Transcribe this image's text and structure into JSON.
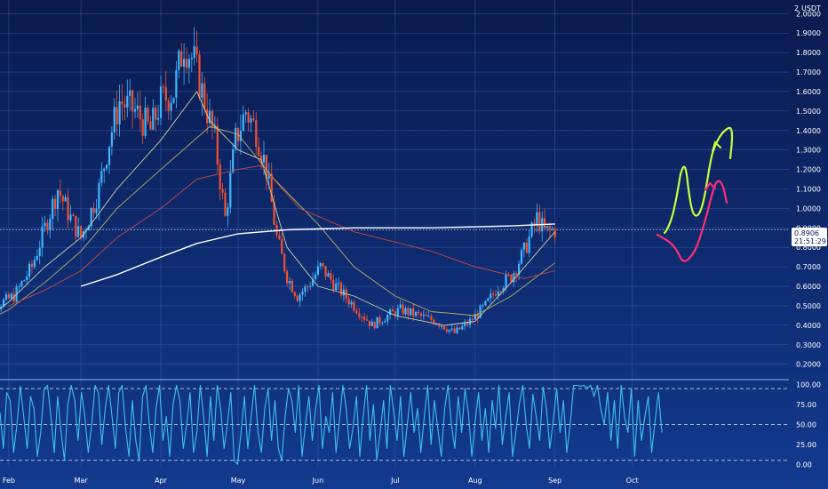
{
  "symbol_quote": "USDT",
  "currency_prefix": "2",
  "price_label": "0.8906",
  "countdown_label": "21:51:29",
  "colors": {
    "bg_top": "#0a1a4e",
    "bg_bottom": "#123a8e",
    "grid": "#3a5aa8",
    "up": "#3fb6ff",
    "down": "#f25030",
    "ma_fast": "#c9d4a0",
    "ma_mid": "#b8b060",
    "ma_slow": "#c24a40",
    "ma_200": "#ffffff",
    "stoch": "#3fc0f0",
    "annot_green": "#c8ff3c",
    "annot_pink": "#ff2d7a",
    "axis_text": "#ffffff"
  },
  "chart_data": [
    {
      "type": "candlestick",
      "title": "",
      "ylabel": "",
      "y_ticks": [
        "2.0000",
        "1.9000",
        "1.8000",
        "1.7000",
        "1.6000",
        "1.5000",
        "1.4000",
        "1.3000",
        "1.2000",
        "1.1000",
        "1.0000",
        "0.9000",
        "0.8000",
        "0.7000",
        "0.6000",
        "0.5000",
        "0.4000",
        "0.3000",
        "0.2000"
      ],
      "ylim": [
        0.13,
        2.07
      ],
      "x_ticks": [
        "Feb",
        "Mar",
        "Apr",
        "May",
        "Jun",
        "Jul",
        "Aug",
        "Sep",
        "Oct"
      ],
      "last_price": 0.8906,
      "close_path": [
        [
          "Jan 20",
          0.42
        ],
        [
          "Jan 27",
          0.5
        ],
        [
          "Feb 3",
          0.55
        ],
        [
          "Feb 10",
          0.7
        ],
        [
          "Feb 15",
          0.9
        ],
        [
          "Feb 20",
          1.1
        ],
        [
          "Feb 25",
          0.95
        ],
        [
          "Mar 1",
          0.85
        ],
        [
          "Mar 4",
          0.95
        ],
        [
          "Mar 8",
          1.1
        ],
        [
          "Mar 12",
          1.35
        ],
        [
          "Mar 16",
          1.55
        ],
        [
          "Mar 22",
          1.5
        ],
        [
          "Mar 28",
          1.4
        ],
        [
          "Apr 1",
          1.55
        ],
        [
          "Apr 6",
          1.6
        ],
        [
          "Apr 10",
          1.85
        ],
        [
          "Apr 14",
          1.75
        ],
        [
          "Apr 18",
          1.55
        ],
        [
          "Apr 22",
          1.35
        ],
        [
          "Apr 26",
          0.95
        ],
        [
          "Apr 30",
          1.35
        ],
        [
          "May 4",
          1.5
        ],
        [
          "May 8",
          1.4
        ],
        [
          "May 12",
          1.2
        ],
        [
          "May 16",
          0.85
        ],
        [
          "May 20",
          0.65
        ],
        [
          "May 24",
          0.55
        ],
        [
          "May 28",
          0.6
        ],
        [
          "Jun 2",
          0.7
        ],
        [
          "Jun 8",
          0.6
        ],
        [
          "Jun 15",
          0.5
        ],
        [
          "Jun 22",
          0.4
        ],
        [
          "Jun 28",
          0.45
        ],
        [
          "Jul 3",
          0.48
        ],
        [
          "Jul 10",
          0.45
        ],
        [
          "Jul 17",
          0.42
        ],
        [
          "Jul 24",
          0.36
        ],
        [
          "Jul 30",
          0.42
        ],
        [
          "Aug 5",
          0.5
        ],
        [
          "Aug 10",
          0.6
        ],
        [
          "Aug 15",
          0.65
        ],
        [
          "Aug 20",
          0.78
        ],
        [
          "Aug 25",
          0.95
        ],
        [
          "Aug 28",
          0.88
        ],
        [
          "Sep 1",
          0.89
        ]
      ],
      "moving_averages": [
        {
          "points": [
            [
              "Jan 20",
              0.4
            ],
            [
              "Feb 1",
              0.52
            ],
            [
              "Feb 15",
              0.7
            ],
            [
              "Mar 1",
              0.85
            ],
            [
              "Mar 15",
              1.1
            ],
            [
              "Apr 1",
              1.35
            ],
            [
              "Apr 15",
              1.6
            ],
            [
              "Apr 20",
              1.45
            ],
            [
              "May 1",
              1.3
            ],
            [
              "May 10",
              1.25
            ],
            [
              "May 20",
              0.8
            ],
            [
              "Jun 1",
              0.6
            ],
            [
              "Jun 15",
              0.55
            ],
            [
              "Jul 1",
              0.45
            ],
            [
              "Jul 20",
              0.4
            ],
            [
              "Aug 1",
              0.42
            ],
            [
              "Aug 15",
              0.62
            ],
            [
              "Sep 1",
              0.88
            ]
          ]
        },
        {
          "points": [
            [
              "Jan 20",
              0.4
            ],
            [
              "Feb 1",
              0.48
            ],
            [
              "Feb 15",
              0.62
            ],
            [
              "Mar 1",
              0.78
            ],
            [
              "Mar 15",
              1.0
            ],
            [
              "Apr 1",
              1.2
            ],
            [
              "Apr 20",
              1.42
            ],
            [
              "May 1",
              1.38
            ],
            [
              "May 15",
              1.15
            ],
            [
              "Jun 1",
              0.92
            ],
            [
              "Jun 15",
              0.7
            ],
            [
              "Jul 1",
              0.55
            ],
            [
              "Jul 15",
              0.47
            ],
            [
              "Aug 1",
              0.45
            ],
            [
              "Aug 15",
              0.55
            ],
            [
              "Sep 1",
              0.72
            ]
          ]
        },
        {
          "points": [
            [
              "Feb 1",
              0.5
            ],
            [
              "Feb 15",
              0.58
            ],
            [
              "Mar 1",
              0.68
            ],
            [
              "Mar 15",
              0.85
            ],
            [
              "Apr 1",
              1.0
            ],
            [
              "Apr 15",
              1.15
            ],
            [
              "May 1",
              1.2
            ],
            [
              "May 10",
              1.22
            ],
            [
              "May 25",
              1.0
            ],
            [
              "Jun 15",
              0.88
            ],
            [
              "Jul 15",
              0.78
            ],
            [
              "Aug 1",
              0.7
            ],
            [
              "Aug 20",
              0.64
            ],
            [
              "Sep 1",
              0.68
            ]
          ]
        },
        {
          "points": [
            [
              "Mar 1",
              0.6
            ],
            [
              "Mar 15",
              0.66
            ],
            [
              "Apr 1",
              0.75
            ],
            [
              "Apr 15",
              0.82
            ],
            [
              "May 1",
              0.87
            ],
            [
              "May 20",
              0.89
            ],
            [
              "Jun 15",
              0.9
            ],
            [
              "Jul 15",
              0.9
            ],
            [
              "Aug 15",
              0.91
            ],
            [
              "Sep 1",
              0.92
            ]
          ]
        }
      ]
    },
    {
      "type": "line",
      "title": "",
      "y_ticks": [
        "100.00",
        "75.00",
        "50.00",
        "25.00",
        "0.00"
      ],
      "ylim": [
        -3,
        104
      ],
      "reference_lines": [
        95,
        50,
        5
      ],
      "values": [
        65,
        20,
        90,
        80,
        15,
        50,
        98,
        60,
        20,
        85,
        70,
        10,
        40,
        95,
        99,
        60,
        15,
        85,
        40,
        5,
        75,
        99,
        80,
        30,
        90,
        60,
        15,
        50,
        99,
        90,
        25,
        70,
        99,
        60,
        20,
        90,
        99,
        45,
        10,
        80,
        30,
        5,
        85,
        99,
        50,
        15,
        70,
        99,
        30,
        60,
        10,
        75,
        99,
        80,
        20,
        50,
        90,
        15,
        40,
        99,
        60,
        10,
        85,
        30,
        99,
        70,
        20,
        50,
        90,
        5,
        0,
        40,
        85,
        20,
        60,
        99,
        40,
        15,
        70,
        95,
        30,
        80,
        20,
        5,
        60,
        95,
        80,
        40,
        99,
        10,
        50,
        85,
        30,
        70,
        99,
        20,
        60,
        40,
        90,
        15,
        55,
        99,
        70,
        20,
        45,
        85,
        10,
        60,
        99,
        30,
        75,
        5,
        40,
        80,
        20,
        99,
        65,
        30,
        85,
        10,
        50,
        90,
        40,
        70,
        15,
        60,
        99,
        25,
        80,
        45,
        10,
        70,
        99,
        50,
        20,
        85,
        40,
        95,
        65,
        10,
        55,
        90,
        30,
        70,
        15,
        80,
        45,
        99,
        25,
        60,
        90,
        10,
        40,
        75,
        99,
        50,
        20,
        88,
        60,
        30,
        97,
        70,
        20,
        55,
        95,
        40,
        80,
        15,
        50,
        99,
        99,
        98,
        99,
        96,
        99,
        85,
        99,
        70,
        50,
        90,
        30,
        80,
        20,
        99,
        60,
        40,
        95,
        10,
        80,
        30,
        60,
        85,
        15,
        55,
        90,
        40
      ]
    }
  ]
}
